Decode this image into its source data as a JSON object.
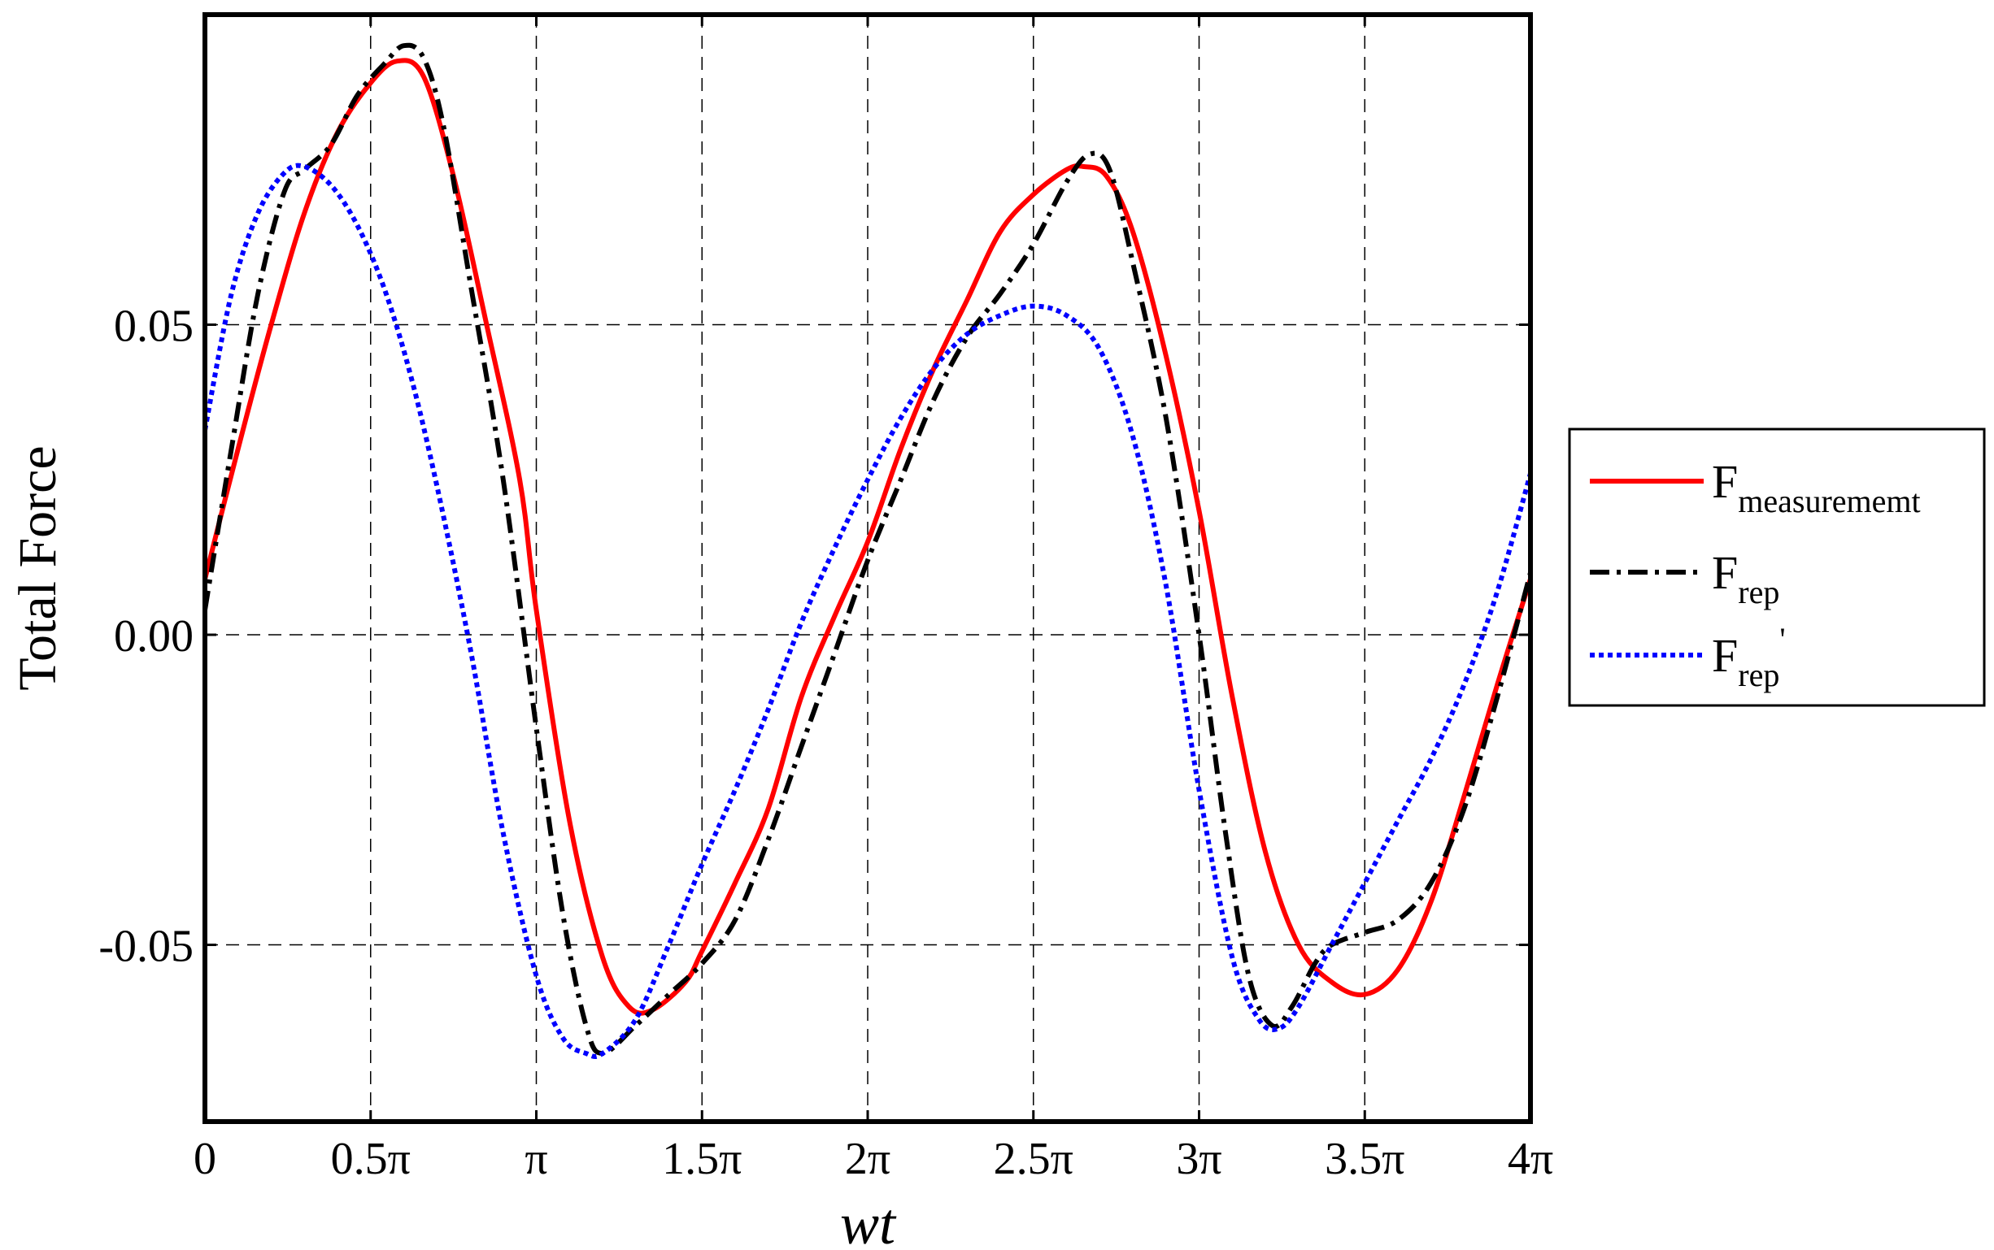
{
  "chart_data": {
    "type": "line",
    "title": "",
    "xlabel": "wt",
    "ylabel": "Total Force",
    "xlim": [
      0,
      4
    ],
    "ylim": [
      -0.0785,
      0.1
    ],
    "x_unit": "π",
    "grid": true,
    "legend_position": "outside-right",
    "x_ticks": [
      0,
      0.5,
      1,
      1.5,
      2,
      2.5,
      3,
      3.5,
      4
    ],
    "x_tick_labels": [
      "0",
      "0.5π",
      "π",
      "1.5π",
      "2π",
      "2.5π",
      "3π",
      "3.5π",
      "4π"
    ],
    "y_ticks": [
      -0.05,
      0.0,
      0.05
    ],
    "y_tick_labels": [
      "-0.05",
      "0.00",
      "0.05"
    ],
    "series": [
      {
        "name": "F",
        "subscript": "measurememt",
        "color": "#ff0000",
        "style": "solid",
        "x": [
          0,
          0.1,
          0.2,
          0.3,
          0.4,
          0.5,
          0.58,
          0.66,
          0.75,
          0.85,
          0.95,
          1.0,
          1.1,
          1.2,
          1.28,
          1.35,
          1.45,
          1.5,
          1.6,
          1.7,
          1.8,
          1.9,
          2.0,
          2.1,
          2.2,
          2.3,
          2.4,
          2.5,
          2.6,
          2.65,
          2.72,
          2.8,
          2.9,
          3.0,
          3.1,
          3.2,
          3.3,
          3.4,
          3.5,
          3.6,
          3.7,
          3.8,
          3.9,
          4.0
        ],
        "y": [
          0.009,
          0.03,
          0.05,
          0.068,
          0.081,
          0.089,
          0.0925,
          0.09,
          0.074,
          0.05,
          0.025,
          0.004,
          -0.03,
          -0.052,
          -0.06,
          -0.0605,
          -0.056,
          -0.051,
          -0.04,
          -0.028,
          -0.01,
          0.003,
          0.015,
          0.03,
          0.043,
          0.054,
          0.065,
          0.071,
          0.075,
          0.0755,
          0.074,
          0.065,
          0.045,
          0.02,
          -0.01,
          -0.035,
          -0.05,
          -0.056,
          -0.058,
          -0.054,
          -0.043,
          -0.026,
          -0.008,
          0.009
        ]
      },
      {
        "name": "F",
        "subscript": "rep",
        "color": "#000000",
        "style": "dashdot",
        "x": [
          0,
          0.08,
          0.16,
          0.24,
          0.3,
          0.38,
          0.46,
          0.54,
          0.6,
          0.66,
          0.72,
          0.8,
          0.9,
          1.0,
          1.08,
          1.15,
          1.2,
          1.3,
          1.4,
          1.5,
          1.6,
          1.7,
          1.8,
          1.9,
          2.0,
          2.1,
          2.2,
          2.3,
          2.4,
          2.5,
          2.6,
          2.67,
          2.73,
          2.8,
          2.9,
          3.0,
          3.08,
          3.15,
          3.22,
          3.28,
          3.35,
          3.4,
          3.5,
          3.6,
          3.7,
          3.8,
          3.9,
          4.0
        ],
        "y": [
          0.004,
          0.03,
          0.055,
          0.0715,
          0.075,
          0.079,
          0.087,
          0.092,
          0.095,
          0.093,
          0.082,
          0.057,
          0.025,
          -0.015,
          -0.045,
          -0.063,
          -0.0675,
          -0.063,
          -0.058,
          -0.053,
          -0.046,
          -0.033,
          -0.018,
          -0.003,
          0.012,
          0.025,
          0.038,
          0.048,
          0.055,
          0.063,
          0.073,
          0.0775,
          0.075,
          0.06,
          0.035,
          0.0,
          -0.032,
          -0.055,
          -0.063,
          -0.06,
          -0.053,
          -0.05,
          -0.048,
          -0.046,
          -0.04,
          -0.028,
          -0.01,
          0.01
        ]
      },
      {
        "name": "F",
        "subscript": "rep",
        "superscript": "'",
        "color": "#0000ff",
        "style": "dotted",
        "x": [
          0,
          0.08,
          0.16,
          0.24,
          0.3,
          0.38,
          0.46,
          0.54,
          0.62,
          0.7,
          0.8,
          0.9,
          1.0,
          1.08,
          1.15,
          1.2,
          1.3,
          1.4,
          1.5,
          1.6,
          1.7,
          1.8,
          1.9,
          2.0,
          2.1,
          2.2,
          2.3,
          2.4,
          2.5,
          2.6,
          2.7,
          2.8,
          2.9,
          3.0,
          3.1,
          3.18,
          3.24,
          3.3,
          3.4,
          3.5,
          3.6,
          3.7,
          3.8,
          3.9,
          4.0
        ],
        "y": [
          0.033,
          0.055,
          0.068,
          0.0745,
          0.0755,
          0.0725,
          0.066,
          0.056,
          0.042,
          0.024,
          -0.002,
          -0.032,
          -0.055,
          -0.065,
          -0.0675,
          -0.0675,
          -0.062,
          -0.05,
          -0.037,
          -0.025,
          -0.012,
          0.002,
          0.014,
          0.025,
          0.035,
          0.043,
          0.0485,
          0.0515,
          0.053,
          0.0515,
          0.046,
          0.032,
          0.008,
          -0.025,
          -0.052,
          -0.062,
          -0.0635,
          -0.06,
          -0.05,
          -0.04,
          -0.03,
          -0.02,
          -0.008,
          0.007,
          0.026
        ]
      }
    ]
  }
}
